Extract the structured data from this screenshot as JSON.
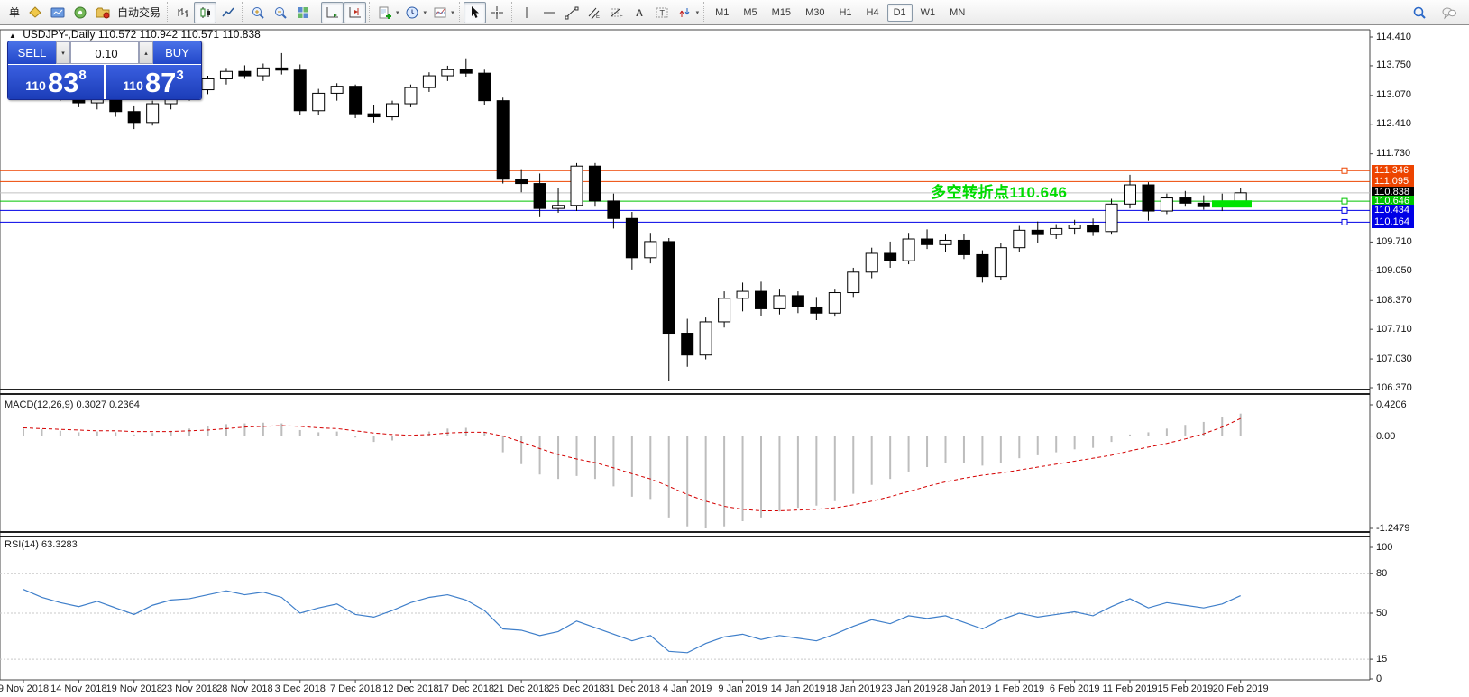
{
  "toolbar": {
    "groups": [
      {
        "items": [
          {
            "name": "new-order-button",
            "label": "单"
          },
          {
            "name": "new-order-icon-button",
            "icon": "diamond"
          },
          {
            "name": "new-chart-button",
            "icon": "chartwin"
          },
          {
            "name": "signals-button",
            "icon": "signal"
          },
          {
            "name": "auto-trading-button",
            "icon": "autotrade",
            "label": "自动交易"
          }
        ]
      },
      {
        "items": [
          {
            "name": "bar-chart-button",
            "icon": "bars"
          },
          {
            "name": "candlestick-chart-button",
            "icon": "candles",
            "active": true
          },
          {
            "name": "line-chart-button",
            "icon": "linechart"
          }
        ]
      },
      {
        "items": [
          {
            "name": "zoom-in-button",
            "icon": "zoomin"
          },
          {
            "name": "zoom-out-button",
            "icon": "zoomout"
          },
          {
            "name": "tile-windows-button",
            "icon": "tile"
          }
        ]
      },
      {
        "items": [
          {
            "name": "auto-scroll-button",
            "icon": "autoscroll",
            "active": true
          },
          {
            "name": "chart-shift-button",
            "icon": "chartshift",
            "active": true
          }
        ]
      },
      {
        "items": [
          {
            "name": "indicators-button",
            "icon": "indicators",
            "dropdown": true
          },
          {
            "name": "periods-button",
            "icon": "clock",
            "dropdown": true
          },
          {
            "name": "templates-button",
            "icon": "template",
            "dropdown": true
          }
        ]
      },
      {
        "items": [
          {
            "name": "cursor-button",
            "icon": "cursor",
            "active": true
          },
          {
            "name": "crosshair-button",
            "icon": "crosshair"
          }
        ]
      },
      {
        "items": [
          {
            "name": "vertical-line-button",
            "icon": "vline"
          },
          {
            "name": "horizontal-line-button",
            "icon": "hline"
          },
          {
            "name": "trendline-button",
            "icon": "trendline"
          },
          {
            "name": "channel-button",
            "icon": "channel"
          },
          {
            "name": "fibonacci-button",
            "icon": "fibo"
          },
          {
            "name": "text-button",
            "icon": "texta"
          },
          {
            "name": "label-button",
            "icon": "labelt"
          },
          {
            "name": "arrows-button",
            "icon": "arrows",
            "dropdown": true
          }
        ]
      }
    ],
    "timeframes": [
      "M1",
      "M5",
      "M15",
      "M30",
      "H1",
      "H4",
      "D1",
      "W1",
      "MN"
    ],
    "active_timeframe": "D1",
    "right_icons": [
      {
        "name": "search-button",
        "icon": "search"
      },
      {
        "name": "chat-button",
        "icon": "chat"
      }
    ]
  },
  "chart": {
    "symbol_title": "USDJPY-,Daily",
    "ohlc_text": "110.572 110.942 110.571 110.838",
    "trade_panel": {
      "sell_label": "SELL",
      "buy_label": "BUY",
      "volume": "0.10",
      "sell_prefix": "110",
      "sell_big": "83",
      "sell_sup": "8",
      "buy_prefix": "110",
      "buy_big": "87",
      "buy_sup": "3"
    },
    "annotation": {
      "text": "多空转折点110.646",
      "color": "#00DC00"
    },
    "price_axis_ticks": [
      114.41,
      113.75,
      113.07,
      112.41,
      111.73,
      109.71,
      109.05,
      108.37,
      107.71,
      107.03,
      106.37
    ],
    "price_labels": [
      {
        "value": 111.346,
        "color": "#ED4400",
        "marker": true,
        "current": false
      },
      {
        "value": 111.095,
        "color": "#ED4400",
        "marker": false,
        "current": false
      },
      {
        "value": 110.838,
        "color": "#000000",
        "marker": false,
        "current": true
      },
      {
        "value": 110.646,
        "color": "#00C400",
        "marker": true,
        "current": false
      },
      {
        "value": 110.434,
        "color": "#0000E6",
        "marker": true,
        "current": false
      },
      {
        "value": 110.164,
        "color": "#0000E6",
        "marker": true,
        "current": false
      }
    ],
    "rect_zone": {
      "price_from": 110.5,
      "price_to": 110.665,
      "color": "#00E400"
    }
  },
  "macd": {
    "label": "MACD(12,26,9) 0.3027 0.2364",
    "scale_max": "0.4206",
    "scale_zero": "0.00",
    "scale_min": "-1.2479",
    "bar_color": "#BDBDBD",
    "signal_color": "#D40000"
  },
  "rsi": {
    "label": "RSI(14) 63.3283",
    "ticks": [
      100,
      80,
      50,
      15,
      0
    ],
    "dashed_levels": [
      80,
      50,
      15
    ],
    "line_color": "#3F7FCA"
  },
  "chart_data": {
    "type": "candlestick",
    "symbol": "USDJPY",
    "timeframe": "Daily",
    "x_labels": [
      "9 Nov 2018",
      "14 Nov 2018",
      "19 Nov 2018",
      "23 Nov 2018",
      "28 Nov 2018",
      "3 Dec 2018",
      "7 Dec 2018",
      "12 Dec 2018",
      "17 Dec 2018",
      "21 Dec 2018",
      "26 Dec 2018",
      "31 Dec 2018",
      "4 Jan 2019",
      "9 Jan 2019",
      "14 Jan 2019",
      "18 Jan 2019",
      "23 Jan 2019",
      "28 Jan 2019",
      "1 Feb 2019",
      "6 Feb 2019",
      "11 Feb 2019",
      "15 Feb 2019",
      "20 Feb 2019"
    ],
    "label_every_n_bars": 3,
    "ylim": [
      106.37,
      114.41
    ],
    "candles_ohlc": [
      [
        113.55,
        113.68,
        113.3,
        113.38
      ],
      [
        113.38,
        113.5,
        113.1,
        113.18
      ],
      [
        113.18,
        113.3,
        112.95,
        113.05
      ],
      [
        113.05,
        113.18,
        112.8,
        112.9
      ],
      [
        112.9,
        113.08,
        112.75,
        113.0
      ],
      [
        113.0,
        113.05,
        112.58,
        112.7
      ],
      [
        112.7,
        112.82,
        112.3,
        112.45
      ],
      [
        112.45,
        112.95,
        112.38,
        112.88
      ],
      [
        112.88,
        113.15,
        112.75,
        113.05
      ],
      [
        113.05,
        113.28,
        112.95,
        113.2
      ],
      [
        113.2,
        113.52,
        113.1,
        113.45
      ],
      [
        113.45,
        113.7,
        113.32,
        113.62
      ],
      [
        113.62,
        113.76,
        113.45,
        113.52
      ],
      [
        113.52,
        113.8,
        113.4,
        113.7
      ],
      [
        113.7,
        114.04,
        113.55,
        113.65
      ],
      [
        113.65,
        113.78,
        112.62,
        112.72
      ],
      [
        112.72,
        113.22,
        112.62,
        113.12
      ],
      [
        113.12,
        113.35,
        112.95,
        113.28
      ],
      [
        113.28,
        113.32,
        112.55,
        112.65
      ],
      [
        112.65,
        112.85,
        112.45,
        112.58
      ],
      [
        112.58,
        112.95,
        112.5,
        112.88
      ],
      [
        112.88,
        113.32,
        112.8,
        113.25
      ],
      [
        113.25,
        113.6,
        113.15,
        113.52
      ],
      [
        113.52,
        113.75,
        113.4,
        113.66
      ],
      [
        113.66,
        113.92,
        113.5,
        113.58
      ],
      [
        113.58,
        113.66,
        112.85,
        112.95
      ],
      [
        112.95,
        113.02,
        111.05,
        111.15
      ],
      [
        111.15,
        111.38,
        110.85,
        111.05
      ],
      [
        111.05,
        111.28,
        110.28,
        110.48
      ],
      [
        110.48,
        110.95,
        110.38,
        110.55
      ],
      [
        110.55,
        111.52,
        110.42,
        111.45
      ],
      [
        111.45,
        111.52,
        110.52,
        110.65
      ],
      [
        110.65,
        110.82,
        110.02,
        110.25
      ],
      [
        110.25,
        110.4,
        109.08,
        109.35
      ],
      [
        109.35,
        109.92,
        109.22,
        109.72
      ],
      [
        109.72,
        109.8,
        106.52,
        107.62
      ],
      [
        107.62,
        107.95,
        106.85,
        107.12
      ],
      [
        107.12,
        107.98,
        107.02,
        107.88
      ],
      [
        107.88,
        108.58,
        107.75,
        108.42
      ],
      [
        108.42,
        108.78,
        108.12,
        108.58
      ],
      [
        108.58,
        108.8,
        108.02,
        108.18
      ],
      [
        108.18,
        108.62,
        108.05,
        108.48
      ],
      [
        108.48,
        108.58,
        108.08,
        108.22
      ],
      [
        108.22,
        108.45,
        107.92,
        108.08
      ],
      [
        108.08,
        108.62,
        108.0,
        108.55
      ],
      [
        108.55,
        109.12,
        108.45,
        109.02
      ],
      [
        109.02,
        109.58,
        108.88,
        109.45
      ],
      [
        109.45,
        109.72,
        109.12,
        109.28
      ],
      [
        109.28,
        109.92,
        109.2,
        109.78
      ],
      [
        109.78,
        110.0,
        109.55,
        109.65
      ],
      [
        109.65,
        109.88,
        109.48,
        109.75
      ],
      [
        109.75,
        109.9,
        109.32,
        109.42
      ],
      [
        109.42,
        109.52,
        108.78,
        108.92
      ],
      [
        108.92,
        109.68,
        108.85,
        109.58
      ],
      [
        109.58,
        110.08,
        109.48,
        109.98
      ],
      [
        109.98,
        110.18,
        109.68,
        109.88
      ],
      [
        109.88,
        110.12,
        109.78,
        110.02
      ],
      [
        110.02,
        110.22,
        109.88,
        110.1
      ],
      [
        110.1,
        110.25,
        109.85,
        109.95
      ],
      [
        109.95,
        110.7,
        109.88,
        110.58
      ],
      [
        110.58,
        111.25,
        110.48,
        111.02
      ],
      [
        111.02,
        111.08,
        110.2,
        110.42
      ],
      [
        110.42,
        110.82,
        110.35,
        110.72
      ],
      [
        110.72,
        110.88,
        110.52,
        110.6
      ],
      [
        110.6,
        110.78,
        110.45,
        110.52
      ],
      [
        110.52,
        110.82,
        110.42,
        110.58
      ],
      [
        110.572,
        110.942,
        110.571,
        110.838
      ]
    ],
    "macd_hist": [
      0.1,
      0.09,
      0.07,
      0.05,
      0.06,
      0.05,
      0.02,
      0.04,
      0.07,
      0.1,
      0.13,
      0.16,
      0.17,
      0.18,
      0.17,
      0.08,
      0.05,
      0.06,
      -0.02,
      -0.08,
      -0.06,
      0.0,
      0.06,
      0.1,
      0.11,
      0.05,
      -0.22,
      -0.38,
      -0.52,
      -0.58,
      -0.54,
      -0.58,
      -0.68,
      -0.82,
      -0.85,
      -1.1,
      -1.22,
      -1.2479,
      -1.22,
      -1.15,
      -1.1,
      -1.02,
      -0.97,
      -0.94,
      -0.88,
      -0.78,
      -0.66,
      -0.58,
      -0.48,
      -0.42,
      -0.37,
      -0.36,
      -0.4,
      -0.36,
      -0.3,
      -0.26,
      -0.22,
      -0.18,
      -0.16,
      -0.08,
      0.02,
      0.05,
      0.1,
      0.15,
      0.19,
      0.25,
      0.3027
    ],
    "macd_signal": [
      0.11,
      0.1,
      0.09,
      0.08,
      0.07,
      0.07,
      0.06,
      0.06,
      0.06,
      0.07,
      0.08,
      0.1,
      0.12,
      0.13,
      0.14,
      0.13,
      0.11,
      0.1,
      0.07,
      0.04,
      0.02,
      0.01,
      0.02,
      0.04,
      0.05,
      0.05,
      0.0,
      -0.08,
      -0.17,
      -0.25,
      -0.31,
      -0.36,
      -0.43,
      -0.51,
      -0.58,
      -0.68,
      -0.79,
      -0.88,
      -0.95,
      -0.99,
      -1.01,
      -1.01,
      -1.0,
      -0.99,
      -0.97,
      -0.93,
      -0.88,
      -0.82,
      -0.75,
      -0.68,
      -0.62,
      -0.57,
      -0.53,
      -0.5,
      -0.46,
      -0.42,
      -0.38,
      -0.34,
      -0.3,
      -0.26,
      -0.2,
      -0.15,
      -0.1,
      -0.04,
      0.03,
      0.12,
      0.2364
    ],
    "rsi": [
      68,
      62,
      58,
      55,
      59,
      54,
      49,
      56,
      60,
      61,
      64,
      67,
      64,
      66,
      62,
      50,
      54,
      57,
      49,
      47,
      52,
      58,
      62,
      64,
      60,
      52,
      38,
      37,
      33,
      36,
      44,
      39,
      34,
      29,
      33,
      21,
      20,
      27,
      32,
      34,
      30,
      33,
      31,
      29,
      34,
      40,
      45,
      42,
      48,
      46,
      48,
      43,
      38,
      45,
      50,
      47,
      49,
      51,
      48,
      55,
      61,
      54,
      58,
      56,
      54,
      57,
      63.33
    ]
  }
}
